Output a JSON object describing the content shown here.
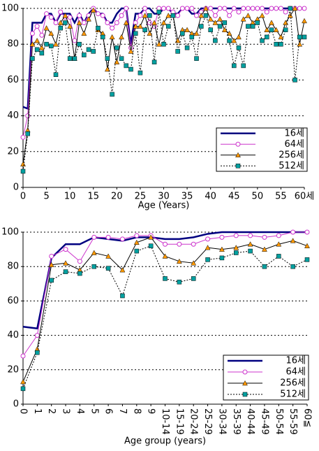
{
  "chart_data": [
    {
      "type": "line",
      "x_label": "Age (Years)",
      "x": [
        0,
        1,
        2,
        3,
        4,
        5,
        6,
        7,
        8,
        9,
        10,
        11,
        12,
        13,
        14,
        15,
        16,
        17,
        18,
        19,
        20,
        21,
        22,
        23,
        24,
        25,
        26,
        27,
        28,
        29,
        30,
        31,
        32,
        33,
        34,
        35,
        36,
        37,
        38,
        39,
        40,
        41,
        42,
        43,
        44,
        45,
        46,
        47,
        48,
        49,
        50,
        51,
        52,
        53,
        54,
        55,
        56,
        57,
        58,
        59,
        60
      ],
      "xlim": [
        0,
        60
      ],
      "xticks": [
        0,
        5,
        10,
        15,
        20,
        25,
        30,
        35,
        40,
        45,
        50,
        55,
        {
          "value": 60,
          "label": "60세"
        }
      ],
      "ylim": [
        0,
        100
      ],
      "yticks": [
        0,
        20,
        40,
        60,
        80,
        100
      ],
      "grid": true,
      "series": [
        {
          "name": "16세",
          "color": "#000080",
          "line_style": "bold",
          "marker": "none",
          "values": [
            45,
            44,
            92,
            92,
            92,
            97,
            97,
            92,
            97,
            97,
            97,
            92,
            97,
            92,
            97,
            100,
            97,
            97,
            92,
            92,
            97,
            100,
            100,
            80,
            97,
            97,
            100,
            100,
            97,
            97,
            100,
            100,
            97,
            97,
            100,
            100,
            97,
            97,
            100,
            100,
            100,
            100,
            100,
            100,
            100,
            100,
            100,
            100,
            100,
            100,
            100,
            100,
            100,
            100,
            100,
            100,
            100,
            100,
            100,
            100,
            100
          ]
        },
        {
          "name": "64세",
          "color": "#cc33cc",
          "line_style": "solid",
          "marker": "circle",
          "values": [
            28,
            40,
            86,
            90,
            85,
            97,
            95,
            92,
            98,
            95,
            95,
            82,
            96,
            92,
            96,
            100,
            97,
            96,
            92,
            89,
            92,
            96,
            100,
            78,
            92,
            96,
            100,
            92,
            90,
            100,
            100,
            100,
            98,
            96,
            100,
            100,
            100,
            96,
            98,
            100,
            100,
            96,
            100,
            100,
            96,
            100,
            98,
            100,
            100,
            100,
            100,
            100,
            98,
            100,
            100,
            100,
            98,
            100,
            100,
            100,
            100
          ]
        },
        {
          "name": "256세",
          "color": "#000000",
          "marker_color": "#ff9900",
          "line_style": "solid",
          "marker": "triangle",
          "values": [
            13,
            32,
            80,
            82,
            78,
            89,
            86,
            80,
            92,
            96,
            90,
            72,
            92,
            86,
            94,
            99,
            88,
            86,
            66,
            84,
            70,
            84,
            92,
            76,
            90,
            90,
            96,
            86,
            92,
            80,
            92,
            96,
            96,
            82,
            88,
            88,
            86,
            86,
            96,
            100,
            94,
            92,
            94,
            88,
            86,
            82,
            84,
            94,
            96,
            92,
            94,
            96,
            88,
            92,
            88,
            84,
            92,
            96,
            100,
            80,
            93
          ]
        },
        {
          "name": "512세",
          "color": "#000000",
          "marker_color": "#00a0a0",
          "line_style": "dotted",
          "marker": "square",
          "values": [
            9,
            30,
            72,
            77,
            75,
            80,
            79,
            63,
            89,
            92,
            72,
            72,
            80,
            74,
            77,
            76,
            89,
            84,
            72,
            52,
            78,
            72,
            68,
            66,
            86,
            64,
            88,
            96,
            70,
            98,
            80,
            90,
            96,
            76,
            86,
            78,
            84,
            72,
            90,
            96,
            88,
            82,
            90,
            92,
            82,
            68,
            78,
            68,
            90,
            90,
            92,
            82,
            84,
            88,
            80,
            80,
            88,
            100,
            60,
            84,
            84
          ]
        }
      ]
    },
    {
      "type": "line",
      "x_label": "Age group (years)",
      "categories": [
        "0",
        "1",
        "2",
        "3",
        "4",
        "5",
        "6",
        "7",
        "8",
        "9",
        "10-14",
        "15-19",
        "20-24",
        "25-29",
        "30-34",
        "35-39",
        "40-44",
        "45-49",
        "50-54",
        "55-59",
        "60≦"
      ],
      "ylim": [
        0,
        100
      ],
      "yticks": [
        0,
        20,
        40,
        60,
        80,
        100
      ],
      "grid": true,
      "series": [
        {
          "name": "16세",
          "color": "#000080",
          "line_style": "bold",
          "marker": "none",
          "values": [
            45,
            44,
            85,
            93,
            93,
            97,
            96,
            95,
            97,
            97,
            96,
            96,
            97,
            99,
            100,
            100,
            100,
            100,
            100,
            100,
            100
          ]
        },
        {
          "name": "64세",
          "color": "#cc33cc",
          "line_style": "solid",
          "marker": "circle",
          "values": [
            28,
            40,
            86,
            90,
            83,
            97,
            97,
            96,
            98,
            98,
            93,
            93,
            93,
            96,
            97,
            98,
            98,
            97,
            98,
            100,
            100
          ]
        },
        {
          "name": "256세",
          "color": "#000000",
          "marker_color": "#ff9900",
          "line_style": "solid",
          "marker": "triangle",
          "values": [
            13,
            32,
            81,
            82,
            78,
            88,
            86,
            78,
            94,
            97,
            86,
            83,
            82,
            91,
            90,
            91,
            93,
            90,
            93,
            95,
            92
          ]
        },
        {
          "name": "512세",
          "color": "#000000",
          "marker_color": "#00a0a0",
          "line_style": "dotted",
          "marker": "square",
          "values": [
            9,
            30,
            72,
            77,
            76,
            80,
            79,
            63,
            89,
            92,
            73,
            71,
            73,
            84,
            85,
            88,
            89,
            80,
            86,
            80,
            84
          ]
        }
      ]
    }
  ]
}
